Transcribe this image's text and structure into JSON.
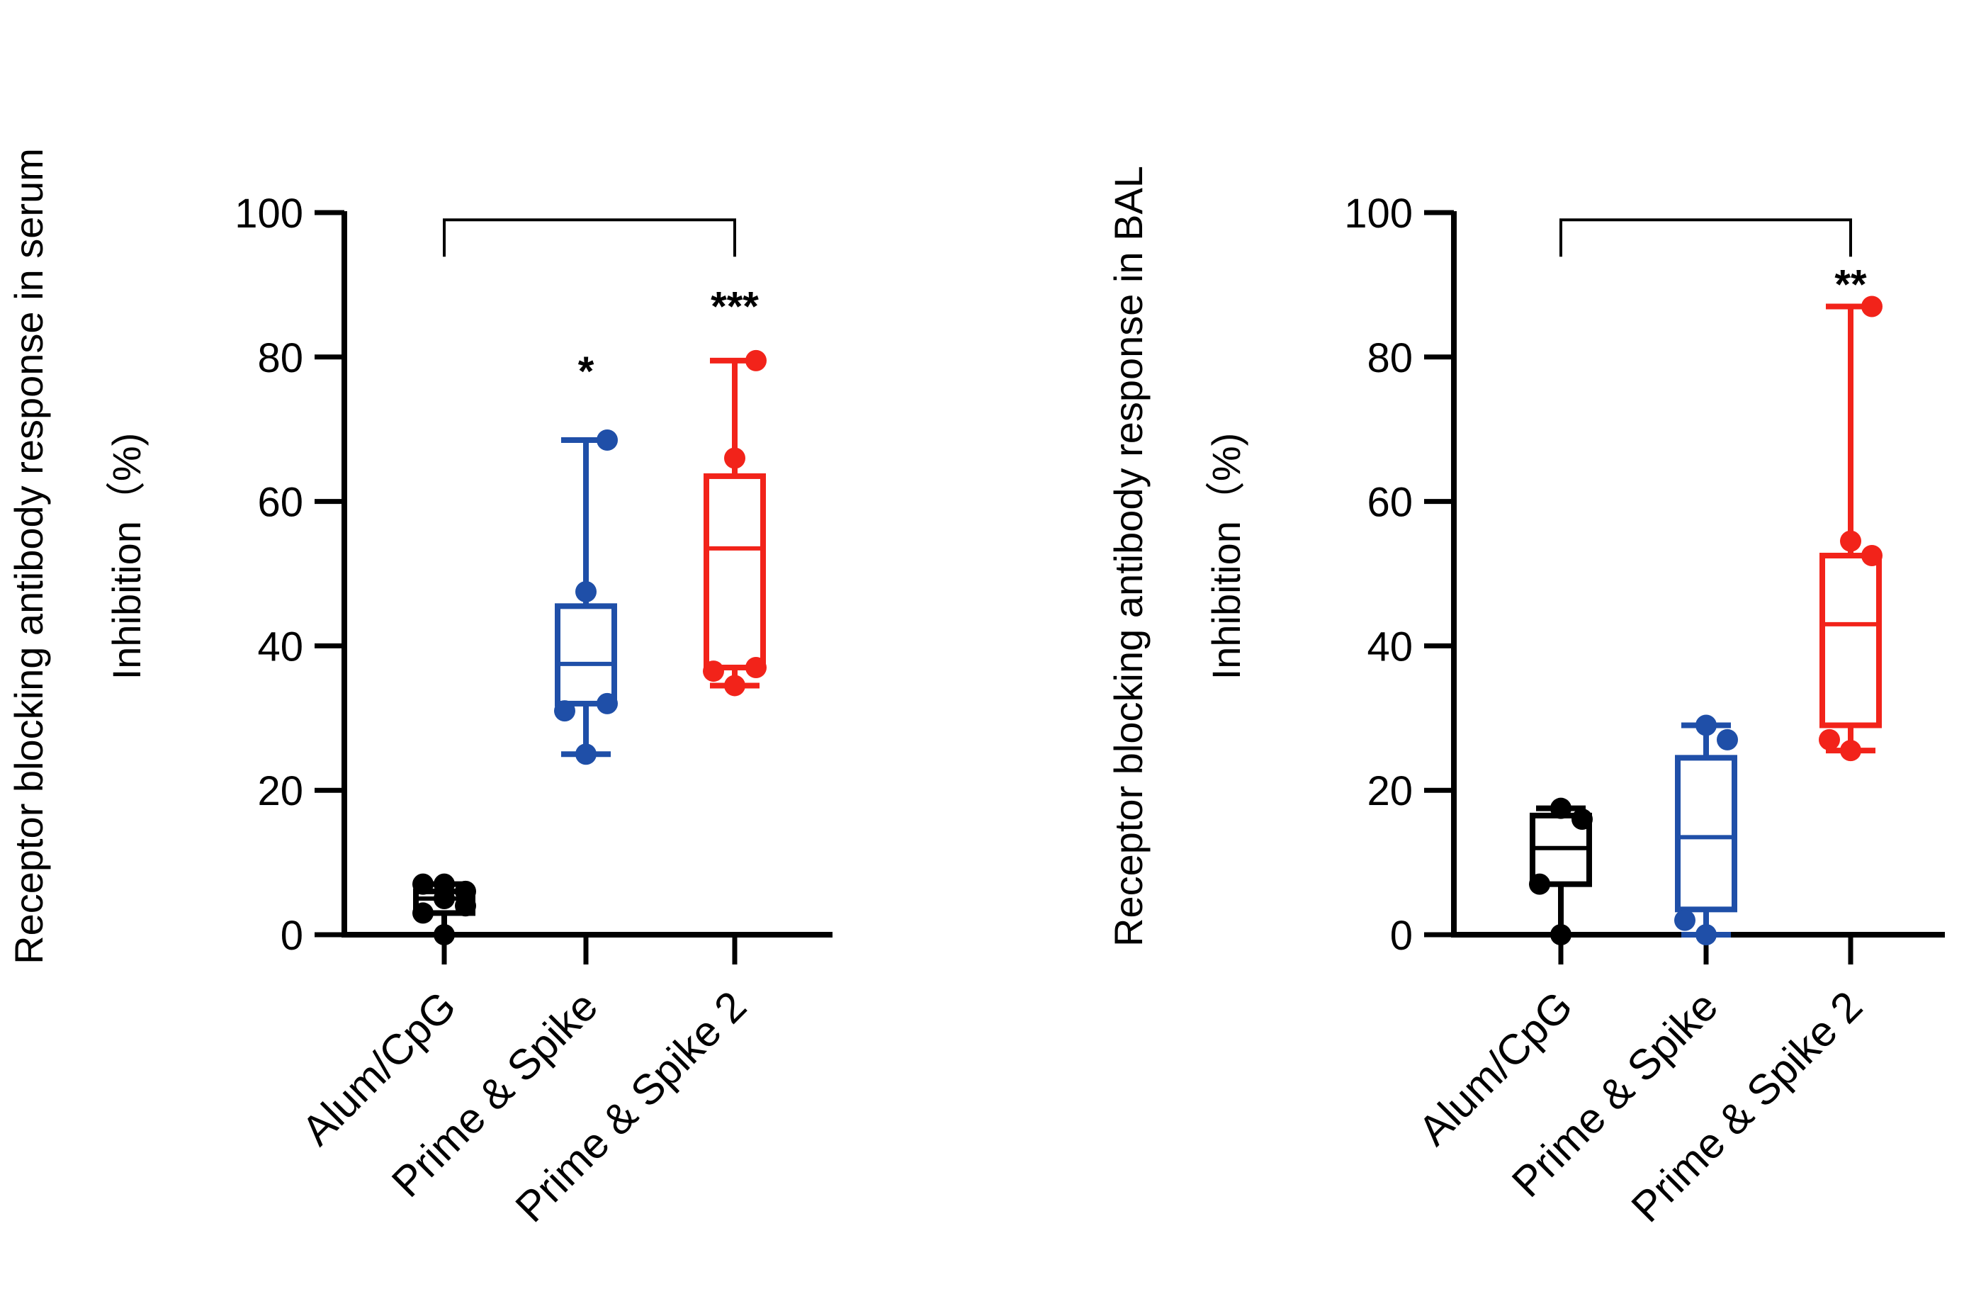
{
  "colors": {
    "Alum/CpG": "#000000",
    "Prime & Spike": "#1f4fa8",
    "Prime & Spike 2": "#f2231a"
  },
  "chart_data": [
    {
      "type": "box",
      "title": "",
      "ylabel_line1": "Receptor blocking antibody response in serum",
      "ylabel_line2": "Inhibition（%)",
      "ylim": [
        0,
        100
      ],
      "yticks": [
        "0",
        "20",
        "40",
        "60",
        "80",
        "100"
      ],
      "categories": [
        "Alum/CpG",
        "Prime & Spike",
        "Prime & Spike 2"
      ],
      "boxes": [
        {
          "name": "Alum/CpG",
          "min": 0,
          "q1": 3,
          "median": 5,
          "q3": 6,
          "max": 7,
          "points": [
            0,
            3,
            4,
            5,
            6,
            7,
            7
          ]
        },
        {
          "name": "Prime & Spike",
          "min": 25,
          "q1": 32,
          "median": 37.5,
          "q3": 45.5,
          "max": 68.5,
          "points": [
            25,
            31,
            32,
            47.5,
            68.5
          ]
        },
        {
          "name": "Prime & Spike 2",
          "min": 34.5,
          "q1": 37,
          "median": 53.5,
          "q3": 63.5,
          "max": 79.5,
          "points": [
            34.5,
            36.5,
            37,
            66,
            79.5
          ]
        }
      ],
      "significance": [
        {
          "category": "Prime & Spike",
          "label": "*",
          "y": 79
        },
        {
          "category": "Prime & Spike 2",
          "label": "***",
          "y": 88
        }
      ],
      "bracket": {
        "from": "Alum/CpG",
        "to": "Prime & Spike 2",
        "y": 99
      }
    },
    {
      "type": "box",
      "title": "",
      "ylabel_line1": "Receptor blocking antibody response in BAL",
      "ylabel_line2": "Inhibition（%)",
      "ylim": [
        0,
        100
      ],
      "yticks": [
        "0",
        "20",
        "40",
        "60",
        "80",
        "100"
      ],
      "categories": [
        "Alum/CpG",
        "Prime & Spike",
        "Prime & Spike 2"
      ],
      "boxes": [
        {
          "name": "Alum/CpG",
          "min": 0,
          "q1": 7,
          "median": 12,
          "q3": 16.5,
          "max": 17.5,
          "points": [
            0,
            7,
            16,
            17.5
          ]
        },
        {
          "name": "Prime & Spike",
          "min": 0,
          "q1": 3.5,
          "median": 13.5,
          "q3": 24.5,
          "max": 29,
          "points": [
            0,
            2,
            27,
            29
          ]
        },
        {
          "name": "Prime & Spike 2",
          "min": 25.5,
          "q1": 29,
          "median": 43,
          "q3": 52.5,
          "max": 87,
          "points": [
            25.5,
            27,
            52.5,
            54.5,
            87
          ]
        }
      ],
      "significance": [
        {
          "category": "Prime & Spike 2",
          "label": "**",
          "y": 91
        }
      ],
      "bracket": {
        "from": "Alum/CpG",
        "to": "Prime & Spike 2",
        "y": 99
      }
    }
  ]
}
